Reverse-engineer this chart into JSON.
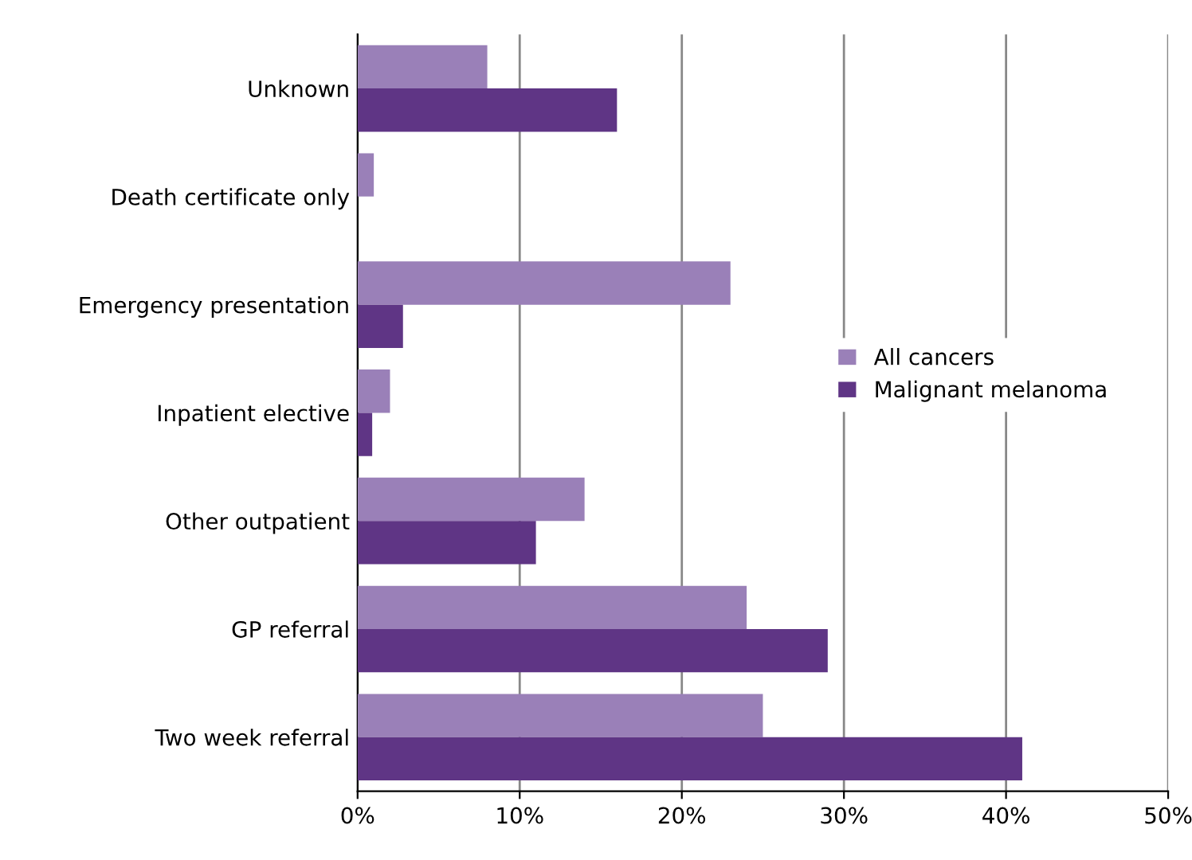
{
  "chart_data": {
    "type": "bar",
    "orientation": "horizontal",
    "categories": [
      "Unknown",
      "Death certificate only",
      "Emergency presentation",
      "Inpatient elective",
      "Other outpatient",
      "GP referral",
      "Two week referral"
    ],
    "series": [
      {
        "name": "All cancers",
        "color": "#9a80b8",
        "values": [
          8,
          1,
          23,
          2,
          14,
          24,
          25
        ]
      },
      {
        "name": "Malignant melanoma",
        "color": "#5f3585",
        "values": [
          16,
          0,
          2.8,
          0.9,
          11,
          29,
          41
        ]
      }
    ],
    "xlim": [
      0,
      50
    ],
    "xticks": [
      {
        "value": 0,
        "label": "0%"
      },
      {
        "value": 10,
        "label": "10%"
      },
      {
        "value": 20,
        "label": "20%"
      },
      {
        "value": 30,
        "label": "30%"
      },
      {
        "value": 40,
        "label": "40%"
      },
      {
        "value": 50,
        "label": "50%"
      }
    ],
    "grid": "x",
    "legend": "right"
  }
}
